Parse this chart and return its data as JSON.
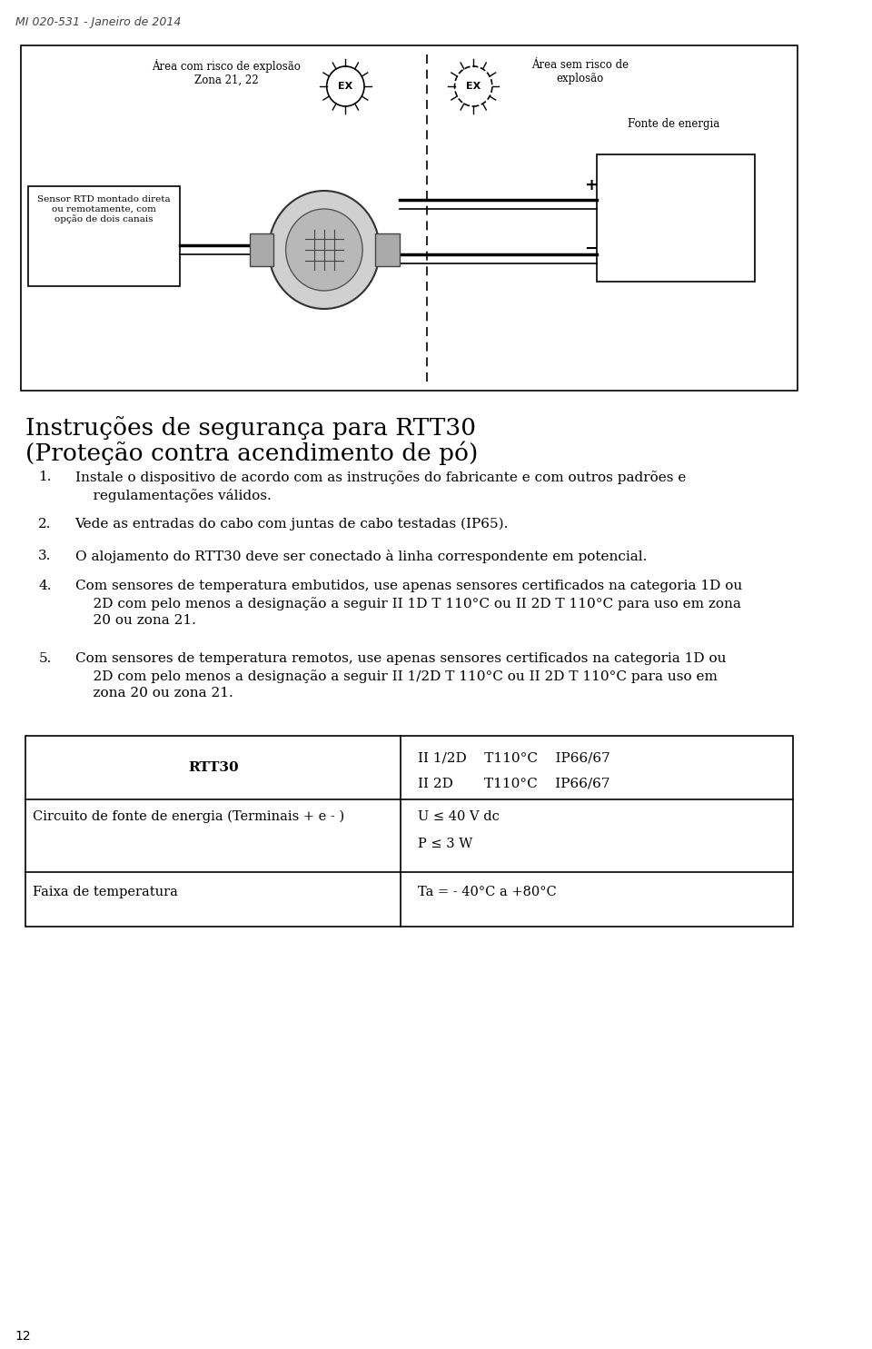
{
  "header_text": "MI 020-531 - Janeiro de 2014",
  "page_number": "12",
  "diagram": {
    "left_label": "Sensor RTD montado direta\nou remotamente, com\nopção de dois canais",
    "area_left_label": "Área com risco de explosão\nZona 21, 22",
    "area_right_label": "Área sem risco de\nexplosão",
    "fonte_label": "Fonte de energia"
  },
  "section_title": "Instruções de segurança para RTT30\n(Proteção contra acendimento de pó)",
  "items": [
    {
      "num": "1.",
      "text": "Instale o dispositivo de acordo com as instruções do fabricante e com outros padrões e regulamentações válidos."
    },
    {
      "num": "2.",
      "text": "Vede as entradas do cabo com juntas de cabo testadas (IP65)."
    },
    {
      "num": "3.",
      "text": "O alojamento do RTT30 deve ser conectado à linha correspondente em potencial."
    },
    {
      "num": "4.",
      "text": "Com sensores de temperatura embutidos, use apenas sensores certificados na categoria 1D ou 2D com pelo menos a designação a seguir II 1D T 110°C ou II 2D T 110°C para uso em zona 20 ou zona 21."
    },
    {
      "num": "5.",
      "text": "Com sensores de temperatura remotos, use apenas sensores certificados na categoria 1D ou 2D com pelo menos a designação a seguir II 1/2D T 110°C ou II 2D T 110°C para uso em zona 20 ou zona 21."
    }
  ],
  "table": {
    "col1_header": "RTT30",
    "col2_row1": "II 1/2D    T110°C    IP66/67",
    "col2_row2": "II 2D       T110°C    IP66/67",
    "row2_col1": "Circuito de fonte de energia (Terminais + e - )",
    "row2_col2_line1": "U ≤ 40 V dc",
    "row2_col2_line2": "P ≤ 3 W",
    "row3_col1": "Faixa de temperatura",
    "row3_col2": "Ta = - 40°C a +80°C"
  },
  "bg_color": "#ffffff",
  "text_color": "#000000",
  "border_color": "#000000"
}
